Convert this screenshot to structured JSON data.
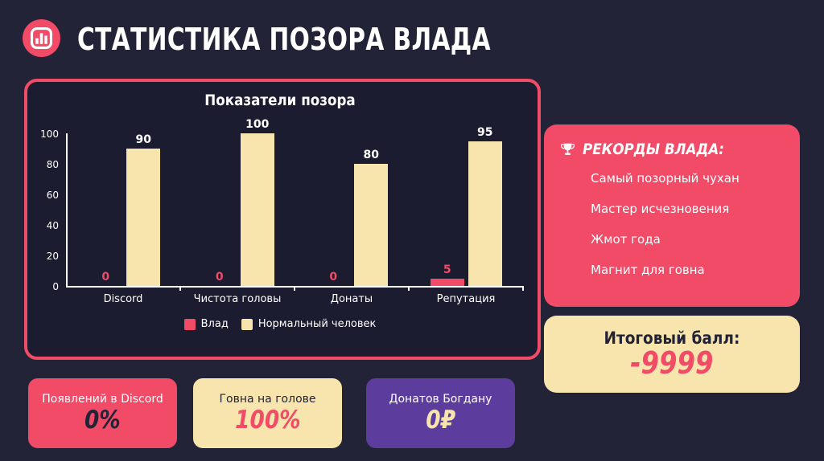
{
  "colors": {
    "background": "#232338",
    "panel": "#1c1c30",
    "pink": "#f14b68",
    "cream": "#f8e5ad",
    "purple": "#5c3d9e",
    "navy_text": "#232338",
    "white": "#ffffff"
  },
  "header": {
    "title": "СТАТИСТИКА ПОЗОРА ВЛАДА",
    "logo_icon": "bar-chart-icon"
  },
  "chart_data": {
    "type": "bar",
    "title": "Показатели позора",
    "categories": [
      "Discord",
      "Чистота головы",
      "Донаты",
      "Репутация"
    ],
    "series": [
      {
        "name": "Влад",
        "color": "#f14b68",
        "values": [
          0,
          0,
          0,
          5
        ]
      },
      {
        "name": "Нормальный человек",
        "color": "#f8e5ad",
        "values": [
          90,
          100,
          80,
          95
        ]
      }
    ],
    "ylim": [
      0,
      100
    ],
    "yticks": [
      0,
      20,
      40,
      60,
      80,
      100
    ],
    "legend_position": "bottom",
    "grid": false
  },
  "records": {
    "icon": "trophy-icon",
    "title": "РЕКОРДЫ ВЛАДА:",
    "items": [
      "Самый позорный чухан",
      "Мастер исчезновения",
      "Жмот года",
      "Магнит для говна"
    ]
  },
  "score": {
    "label": "Итоговый балл:",
    "value": "-9999"
  },
  "stats_cards": [
    {
      "label": "Появлений в Discord",
      "value": "0%",
      "bg": "#f14b68",
      "label_color": "#ffffff",
      "value_color": "#232338"
    },
    {
      "label": "Говна на голове",
      "value": "100%",
      "bg": "#f8e5ad",
      "label_color": "#232338",
      "value_color": "#f14b68"
    },
    {
      "label": "Донатов Богдану",
      "value": "0₽",
      "bg": "#5c3d9e",
      "label_color": "#ffffff",
      "value_color": "#f8e5ad"
    }
  ]
}
